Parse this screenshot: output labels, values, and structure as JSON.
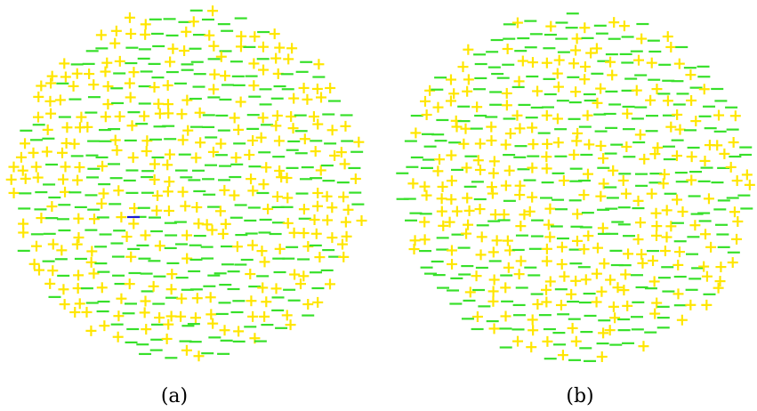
{
  "panels": [
    {
      "id": "a",
      "label": "(a)",
      "seed": 11,
      "hasHighlight": true
    },
    {
      "id": "b",
      "label": "(b)",
      "seed": 29,
      "hasHighlight": false
    }
  ],
  "symbols": {
    "plus_char": "+",
    "minus_char": "−"
  },
  "colors": {
    "plus": "#ffe600",
    "minus": "#37e02a",
    "highlight": "#1a1ad6",
    "background": "#ffffff"
  }
}
